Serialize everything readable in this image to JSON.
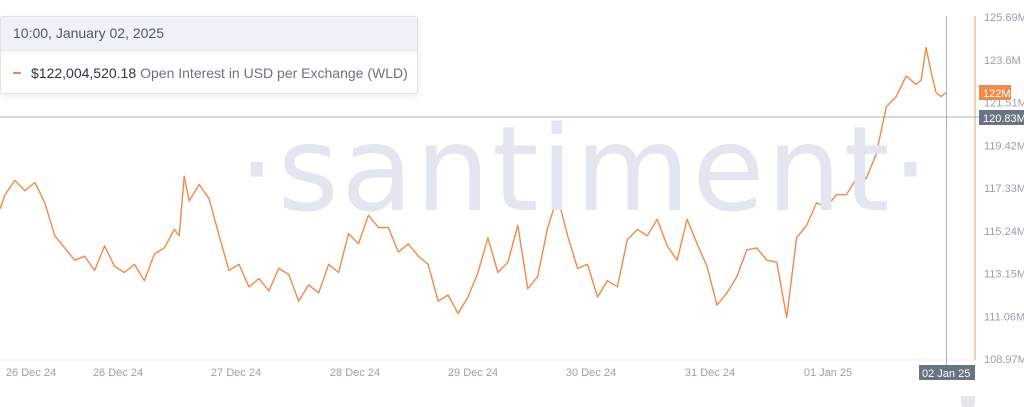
{
  "watermark": "·santiment·",
  "tooltip": {
    "date": "10:00, January 02, 2025",
    "value": "$122,004,520.18",
    "series_label": "Open Interest in USD per Exchange (WLD)"
  },
  "colors": {
    "line": "#f08a4b",
    "axis": "#e9a06e",
    "crosshair": "#aab0bb",
    "axis_text": "#9aa0aa",
    "badge_dark": "#6a7384",
    "badge_orange": "#f08a4b"
  },
  "axis_badges": {
    "current_value": "122M",
    "crosshair_value": "120.83M",
    "crosshair_date": "02 Jan 25"
  },
  "chart_data": {
    "type": "line",
    "title": "",
    "xlabel": "",
    "ylabel": "",
    "ylim": [
      108.97,
      125.69
    ],
    "y_tick_labels": [
      "125.69M",
      "123.6M",
      "121.51M",
      "119.42M",
      "117.33M",
      "115.24M",
      "113.15M",
      "111.06M",
      "108.97M"
    ],
    "x_tick_labels": [
      "26 Dec 24",
      "26 Dec 24",
      "27 Dec 24",
      "28 Dec 24",
      "29 Dec 24",
      "30 Dec 24",
      "31 Dec 24",
      "01 Jan 25"
    ],
    "grid": false,
    "legend": "top-left",
    "series": [
      {
        "name": "Open Interest in USD per Exchange (WLD)",
        "x": [
          "2024-12-25 12:00",
          "2024-12-25 13:00",
          "2024-12-25 15:00",
          "2024-12-25 17:00",
          "2024-12-25 19:00",
          "2024-12-25 21:00",
          "2024-12-25 23:00",
          "2024-12-26 01:00",
          "2024-12-26 03:00",
          "2024-12-26 05:00",
          "2024-12-26 07:00",
          "2024-12-26 09:00",
          "2024-12-26 11:00",
          "2024-12-26 13:00",
          "2024-12-26 15:00",
          "2024-12-26 17:00",
          "2024-12-26 19:00",
          "2024-12-26 21:00",
          "2024-12-26 23:00",
          "2024-12-27 00:00",
          "2024-12-27 01:00",
          "2024-12-27 02:00",
          "2024-12-27 04:00",
          "2024-12-27 06:00",
          "2024-12-27 08:00",
          "2024-12-27 10:00",
          "2024-12-27 12:00",
          "2024-12-27 14:00",
          "2024-12-27 16:00",
          "2024-12-27 18:00",
          "2024-12-27 20:00",
          "2024-12-27 22:00",
          "2024-12-28 00:00",
          "2024-12-28 02:00",
          "2024-12-28 04:00",
          "2024-12-28 06:00",
          "2024-12-28 08:00",
          "2024-12-28 10:00",
          "2024-12-28 12:00",
          "2024-12-28 14:00",
          "2024-12-28 16:00",
          "2024-12-28 18:00",
          "2024-12-28 20:00",
          "2024-12-28 22:00",
          "2024-12-29 00:00",
          "2024-12-29 02:00",
          "2024-12-29 04:00",
          "2024-12-29 06:00",
          "2024-12-29 08:00",
          "2024-12-29 10:00",
          "2024-12-29 12:00",
          "2024-12-29 14:00",
          "2024-12-29 16:00",
          "2024-12-29 18:00",
          "2024-12-29 20:00",
          "2024-12-29 22:00",
          "2024-12-30 00:00",
          "2024-12-30 02:00",
          "2024-12-30 04:00",
          "2024-12-30 06:00",
          "2024-12-30 08:00",
          "2024-12-30 10:00",
          "2024-12-30 12:00",
          "2024-12-30 14:00",
          "2024-12-30 16:00",
          "2024-12-30 18:00",
          "2024-12-30 20:00",
          "2024-12-30 22:00",
          "2024-12-31 00:00",
          "2024-12-31 02:00",
          "2024-12-31 04:00",
          "2024-12-31 06:00",
          "2024-12-31 08:00",
          "2024-12-31 10:00",
          "2024-12-31 12:00",
          "2024-12-31 14:00",
          "2024-12-31 16:00",
          "2024-12-31 18:00",
          "2024-12-31 20:00",
          "2024-12-31 22:00",
          "2025-01-01 00:00",
          "2025-01-01 02:00",
          "2025-01-01 04:00",
          "2025-01-01 06:00",
          "2025-01-01 08:00",
          "2025-01-01 10:00",
          "2025-01-01 12:00",
          "2025-01-01 14:00",
          "2025-01-01 16:00",
          "2025-01-01 18:00",
          "2025-01-01 20:00",
          "2025-01-01 22:00",
          "2025-01-02 00:00",
          "2025-01-02 02:00",
          "2025-01-02 04:00",
          "2025-01-02 05:00",
          "2025-01-02 06:00",
          "2025-01-02 07:00",
          "2025-01-02 08:00",
          "2025-01-02 09:00",
          "2025-01-02 10:00"
        ],
        "values": [
          116.3,
          117.0,
          117.7,
          117.2,
          117.6,
          116.6,
          115.0,
          114.4,
          113.8,
          114.0,
          113.3,
          114.5,
          113.5,
          113.2,
          113.6,
          112.8,
          114.1,
          114.4,
          115.3,
          115.0,
          117.9,
          116.7,
          117.5,
          116.8,
          115.0,
          113.3,
          113.6,
          112.5,
          112.9,
          112.3,
          113.4,
          113.1,
          111.8,
          112.6,
          112.2,
          113.6,
          113.2,
          115.1,
          114.6,
          116.0,
          115.4,
          115.4,
          114.2,
          114.6,
          114.0,
          113.6,
          111.8,
          112.1,
          111.2,
          112.0,
          113.2,
          114.9,
          113.2,
          113.7,
          115.5,
          112.4,
          113.0,
          115.4,
          116.9,
          115.0,
          113.4,
          113.6,
          112.0,
          112.8,
          112.5,
          114.8,
          115.3,
          115.0,
          115.8,
          114.5,
          113.8,
          115.8,
          114.6,
          113.5,
          111.6,
          112.2,
          113.0,
          114.3,
          114.4,
          113.8,
          113.7,
          111.0,
          114.9,
          115.5,
          116.6,
          116.4,
          117.0,
          117.0,
          117.8,
          117.8,
          119.0,
          121.3,
          121.8,
          122.8,
          122.4,
          122.6,
          124.2,
          123.0,
          122.0,
          121.8,
          122.0
        ]
      }
    ]
  }
}
